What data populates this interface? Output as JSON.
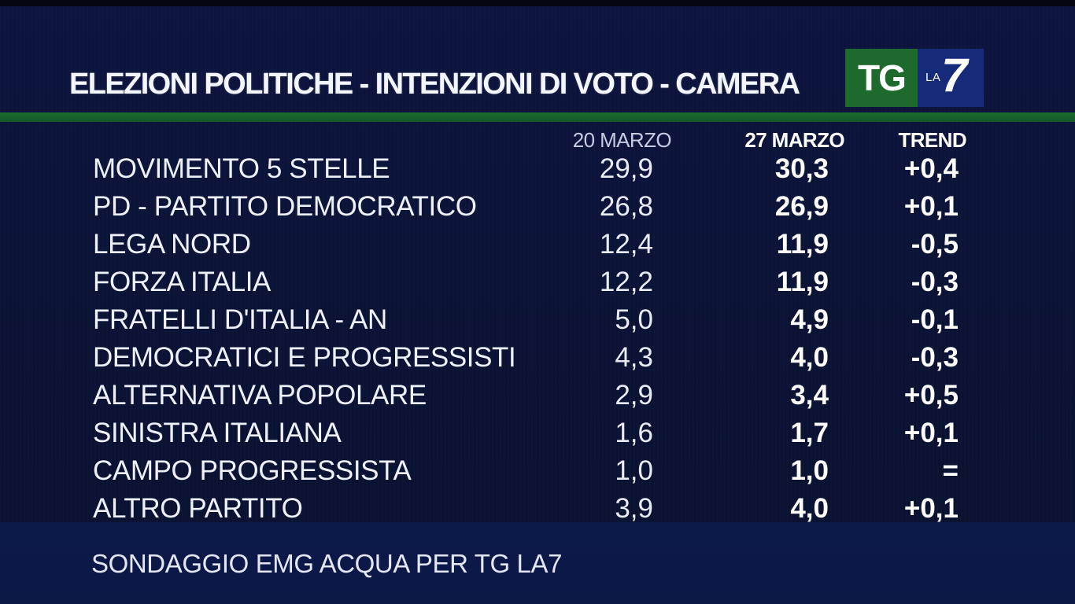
{
  "header": {
    "title": "ELEZIONI POLITICHE - INTENZIONI DI VOTO - CAMERA",
    "logo": {
      "tg": "TG",
      "la": "LA",
      "seven": "7",
      "colors": {
        "tg_bg": "#1d6a2c",
        "la7_bg": "#152a78"
      }
    }
  },
  "chart_data": {
    "type": "table",
    "columns": [
      "20 MARZO",
      "27 MARZO",
      "TREND"
    ],
    "rows": [
      {
        "party": "MOVIMENTO 5 STELLE",
        "prev": "29,9",
        "curr": "30,3",
        "trend": "+0,4"
      },
      {
        "party": "PD - PARTITO DEMOCRATICO",
        "prev": "26,8",
        "curr": "26,9",
        "trend": "+0,1"
      },
      {
        "party": "LEGA NORD",
        "prev": "12,4",
        "curr": "11,9",
        "trend": "-0,5"
      },
      {
        "party": "FORZA ITALIA",
        "prev": "12,2",
        "curr": "11,9",
        "trend": "-0,3"
      },
      {
        "party": "FRATELLI D'ITALIA - AN",
        "prev": "5,0",
        "curr": "4,9",
        "trend": "-0,1"
      },
      {
        "party": "DEMOCRATICI E PROGRESSISTI",
        "prev": "4,3",
        "curr": "4,0",
        "trend": "-0,3"
      },
      {
        "party": "ALTERNATIVA POPOLARE",
        "prev": "2,9",
        "curr": "3,4",
        "trend": "+0,5"
      },
      {
        "party": "SINISTRA ITALIANA",
        "prev": "1,6",
        "curr": "1,7",
        "trend": "+0,1"
      },
      {
        "party": "CAMPO PROGRESSISTA",
        "prev": "1,0",
        "curr": "1,0",
        "trend": "="
      },
      {
        "party": "ALTRO PARTITO",
        "prev": "3,9",
        "curr": "4,0",
        "trend": "+0,1"
      }
    ]
  },
  "footer": {
    "source": "SONDAGGIO EMG ACQUA PER TG LA7"
  },
  "colors": {
    "background": "#0b1336",
    "accent_green": "#1c6a2e",
    "footer_band": "#0c1a4a"
  }
}
